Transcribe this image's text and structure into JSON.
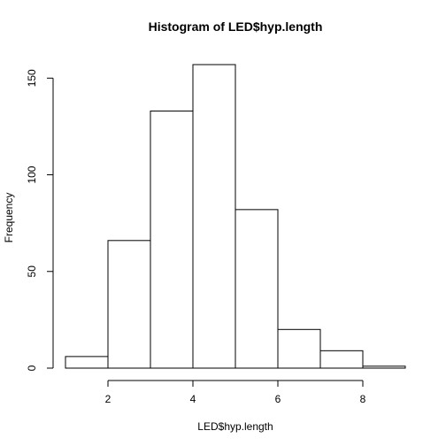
{
  "chart_data": {
    "type": "bar",
    "title": "Histogram of LED$hyp.length",
    "xlabel": "LED$hyp.length",
    "ylabel": "Frequency",
    "bins": [
      {
        "start": 1,
        "end": 2,
        "count": 6
      },
      {
        "start": 2,
        "end": 3,
        "count": 66
      },
      {
        "start": 3,
        "end": 4,
        "count": 133
      },
      {
        "start": 4,
        "end": 5,
        "count": 157
      },
      {
        "start": 5,
        "end": 6,
        "count": 82
      },
      {
        "start": 6,
        "end": 7,
        "count": 20
      },
      {
        "start": 7,
        "end": 8,
        "count": 9
      },
      {
        "start": 8,
        "end": 9,
        "count": 1
      }
    ],
    "xlim": [
      1,
      9
    ],
    "ylim": [
      0,
      157
    ],
    "x_ticks": [
      2,
      4,
      6,
      8
    ],
    "y_ticks": [
      0,
      50,
      100,
      150
    ],
    "grid": false
  }
}
